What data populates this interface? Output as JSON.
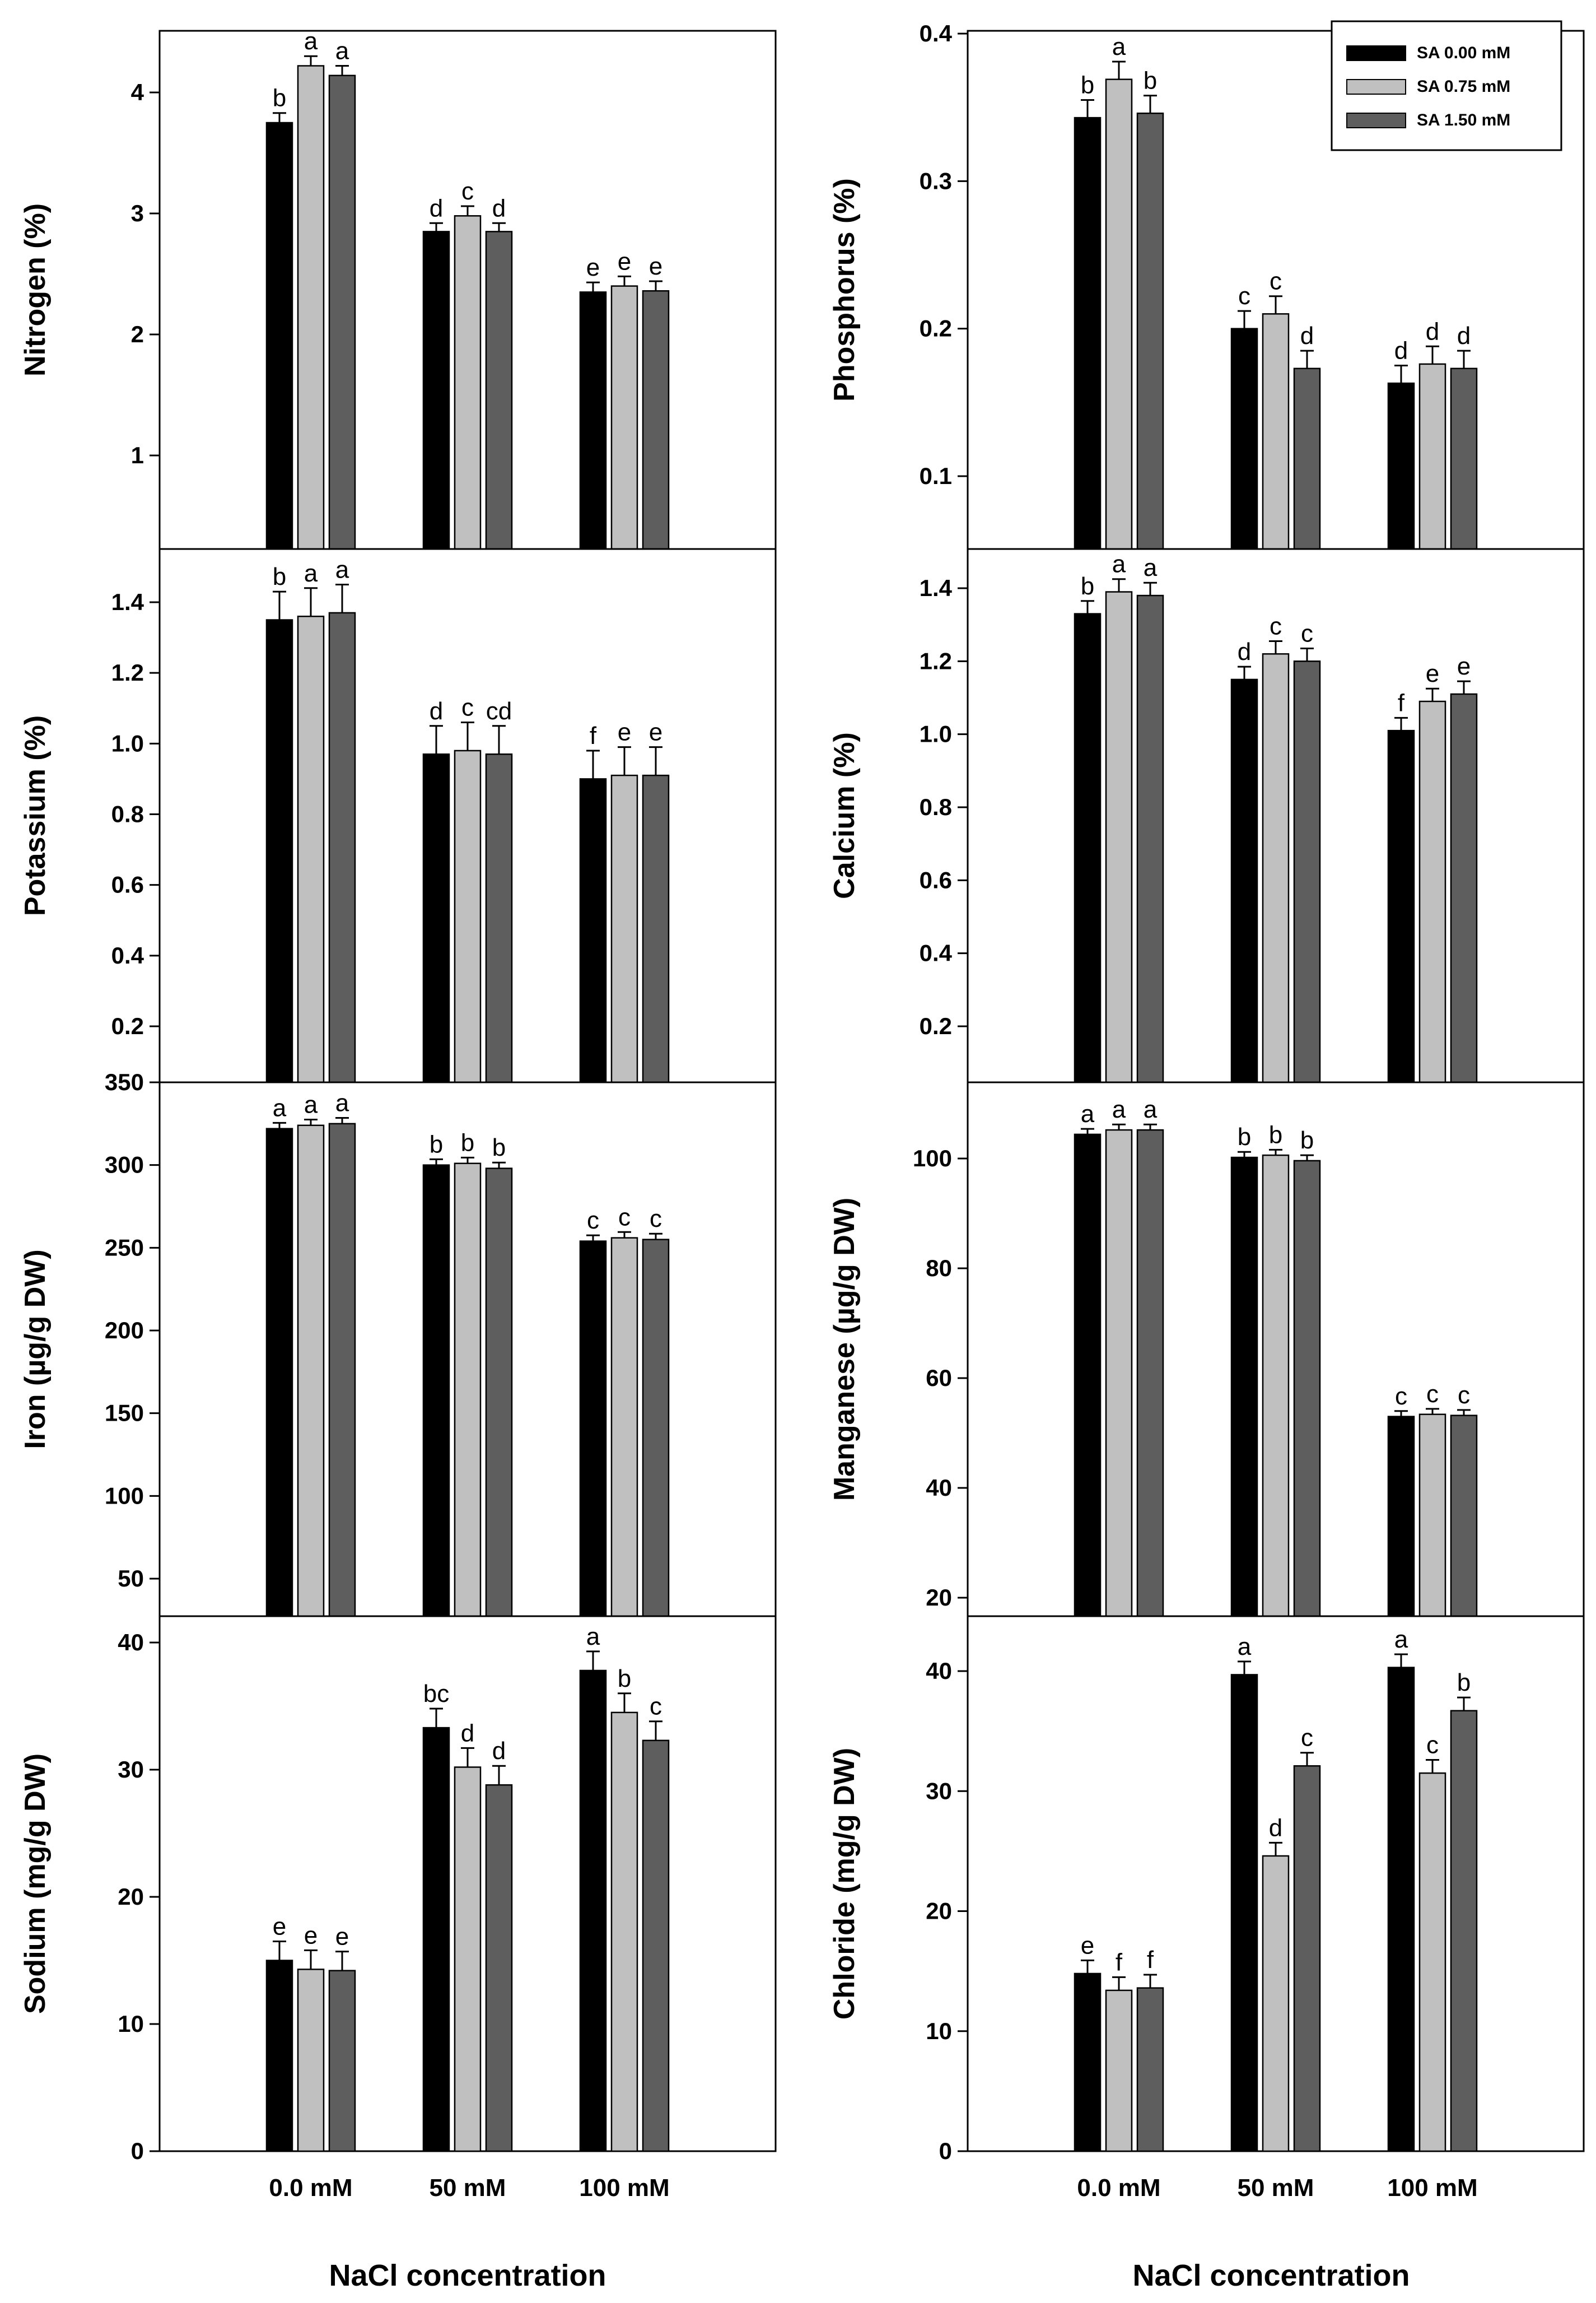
{
  "legend": {
    "entries": [
      {
        "label": "SA 0.00 mM",
        "color": "#000000"
      },
      {
        "label": "SA 0.75 mM",
        "color": "#c0c0c0"
      },
      {
        "label": "SA 1.50 mM",
        "color": "#5e5e5e"
      }
    ],
    "placement": "top-right of phosphorus panel"
  },
  "x_axis_title": "NaCl concentration",
  "categories": [
    "0.0 mM",
    "50 mM",
    "100 mM"
  ],
  "chart_data": [
    {
      "type": "bar",
      "ylabel": "Nitrogen (%)",
      "ylim": [
        0.3,
        4.6
      ],
      "yticks": [
        1,
        2,
        3,
        4
      ],
      "tick_labels": [
        "1",
        "2",
        "3",
        "4"
      ],
      "series": [
        {
          "name": "SA 0.00 mM",
          "values": [
            3.75,
            2.85,
            2.35
          ],
          "errors": [
            0.08,
            0.07,
            0.08
          ],
          "letters": [
            "b",
            "d",
            "e"
          ]
        },
        {
          "name": "SA 0.75 mM",
          "values": [
            4.22,
            2.98,
            2.4
          ],
          "errors": [
            0.08,
            0.08,
            0.08
          ],
          "letters": [
            "a",
            "c",
            "e"
          ]
        },
        {
          "name": "SA 1.50 mM",
          "values": [
            4.14,
            2.85,
            2.36
          ],
          "errors": [
            0.08,
            0.07,
            0.08
          ],
          "letters": [
            "a",
            "d",
            "e"
          ]
        }
      ]
    },
    {
      "type": "bar",
      "ylabel": "Phosphorus (%)",
      "ylim": [
        0.051,
        0.402
      ],
      "yticks": [
        0.1,
        0.2,
        0.3,
        0.4
      ],
      "tick_labels": [
        "0.1",
        "0.2",
        "0.3",
        "0.4"
      ],
      "series": [
        {
          "name": "SA 0.00 mM",
          "values": [
            0.343,
            0.2,
            0.163
          ],
          "errors": [
            0.012,
            0.012,
            0.012
          ],
          "letters": [
            "b",
            "c",
            "d"
          ]
        },
        {
          "name": "SA 0.75 mM",
          "values": [
            0.369,
            0.21,
            0.176
          ],
          "errors": [
            0.012,
            0.012,
            0.012
          ],
          "letters": [
            "a",
            "c",
            "d"
          ]
        },
        {
          "name": "SA 1.50 mM",
          "values": [
            0.346,
            0.173,
            0.173
          ],
          "errors": [
            0.012,
            0.012,
            0.012
          ],
          "letters": [
            "b",
            "d",
            "d"
          ]
        }
      ]
    },
    {
      "type": "bar",
      "ylabel": "Potassium (%)",
      "ylim": [
        0.0,
        1.52
      ],
      "yticks": [
        0.2,
        0.4,
        0.6,
        0.8,
        1.0,
        1.2,
        1.4
      ],
      "tick_labels": [
        "0.2",
        "0.4",
        "0.6",
        "0.8",
        "1.0",
        "1.2",
        "1.4"
      ],
      "series": [
        {
          "name": "SA 0.00 mM",
          "values": [
            1.35,
            0.97,
            0.9
          ],
          "errors": [
            0.08,
            0.08,
            0.08
          ],
          "letters": [
            "b",
            "d",
            "f"
          ]
        },
        {
          "name": "SA 0.75 mM",
          "values": [
            1.36,
            0.98,
            0.91
          ],
          "errors": [
            0.08,
            0.08,
            0.08
          ],
          "letters": [
            "a",
            "c",
            "e"
          ]
        },
        {
          "name": "SA 1.50 mM",
          "values": [
            1.37,
            0.97,
            0.91
          ],
          "errors": [
            0.08,
            0.08,
            0.08
          ],
          "letters": [
            "a",
            "cd",
            "e"
          ]
        }
      ]
    },
    {
      "type": "bar",
      "ylabel": "Calcium (%)",
      "ylim": [
        0.0,
        1.52
      ],
      "yticks": [
        0.2,
        0.4,
        0.6,
        0.8,
        1.0,
        1.2,
        1.4
      ],
      "tick_labels": [
        "0.2",
        "0.4",
        "0.6",
        "0.8",
        "1.0",
        "1.2",
        "1.4"
      ],
      "series": [
        {
          "name": "SA 0.00 mM",
          "values": [
            1.33,
            1.15,
            1.01
          ],
          "errors": [
            0.035,
            0.035,
            0.035
          ],
          "letters": [
            "b",
            "d",
            "f"
          ]
        },
        {
          "name": "SA 0.75 mM",
          "values": [
            1.39,
            1.22,
            1.09
          ],
          "errors": [
            0.035,
            0.035,
            0.035
          ],
          "letters": [
            "a",
            "c",
            "e"
          ]
        },
        {
          "name": "SA 1.50 mM",
          "values": [
            1.38,
            1.2,
            1.11
          ],
          "errors": [
            0.035,
            0.035,
            0.035
          ],
          "letters": [
            "a",
            "c",
            "e"
          ]
        }
      ]
    },
    {
      "type": "bar",
      "ylabel": "Iron (µg/g DW)",
      "ylim": [
        27,
        350
      ],
      "yticks": [
        50,
        100,
        150,
        200,
        250,
        300,
        350
      ],
      "tick_labels": [
        "50",
        "100",
        "150",
        "200",
        "250",
        "300",
        "350"
      ],
      "series": [
        {
          "name": "SA 0.00 mM",
          "values": [
            322,
            300,
            254
          ],
          "errors": [
            3.5,
            3.5,
            3.5
          ],
          "letters": [
            "a",
            "b",
            "c"
          ]
        },
        {
          "name": "SA 0.75 mM",
          "values": [
            324,
            301,
            256
          ],
          "errors": [
            3.5,
            3.5,
            3.5
          ],
          "letters": [
            "a",
            "b",
            "c"
          ]
        },
        {
          "name": "SA 1.50 mM",
          "values": [
            325,
            298,
            255
          ],
          "errors": [
            3.5,
            3.5,
            3.5
          ],
          "letters": [
            "a",
            "b",
            "c"
          ]
        }
      ]
    },
    {
      "type": "bar",
      "ylabel": "Manganese (µg/g DW)",
      "ylim": [
        15,
        110
      ],
      "yticks": [
        20,
        40,
        60,
        80,
        100
      ],
      "tick_labels": [
        "20",
        "40",
        "60",
        "80",
        "100"
      ],
      "series": [
        {
          "name": "SA 0.00 mM",
          "values": [
            104.4,
            100.2,
            53.0
          ],
          "errors": [
            1.0,
            1.0,
            1.0
          ],
          "letters": [
            "a",
            "b",
            "c"
          ]
        },
        {
          "name": "SA 0.75 mM",
          "values": [
            105.2,
            100.6,
            53.4
          ],
          "errors": [
            1.0,
            1.0,
            1.0
          ],
          "letters": [
            "a",
            "b",
            "c"
          ]
        },
        {
          "name": "SA 1.50 mM",
          "values": [
            105.2,
            99.6,
            53.2
          ],
          "errors": [
            1.0,
            1.0,
            1.0
          ],
          "letters": [
            "a",
            "b",
            "c"
          ]
        }
      ]
    },
    {
      "type": "bar",
      "ylabel": "Sodium (mg/g DW)",
      "ylim": [
        0,
        42
      ],
      "yticks": [
        0,
        10,
        20,
        30,
        40
      ],
      "tick_labels": [
        "0",
        "10",
        "20",
        "30",
        "40"
      ],
      "series": [
        {
          "name": "SA 0.00 mM",
          "values": [
            15.0,
            33.3,
            37.8
          ],
          "errors": [
            1.5,
            1.5,
            1.5
          ],
          "letters": [
            "e",
            "bc",
            "a"
          ]
        },
        {
          "name": "SA 0.75 mM",
          "values": [
            14.3,
            30.2,
            34.5
          ],
          "errors": [
            1.5,
            1.5,
            1.5
          ],
          "letters": [
            "e",
            "d",
            "b"
          ]
        },
        {
          "name": "SA 1.50 mM",
          "values": [
            14.2,
            28.8,
            32.3
          ],
          "errors": [
            1.5,
            1.5,
            1.5
          ],
          "letters": [
            "e",
            "d",
            "c"
          ]
        }
      ]
    },
    {
      "type": "bar",
      "ylabel": "Chloride (mg/g DW)",
      "ylim": [
        0,
        44
      ],
      "yticks": [
        0,
        10,
        20,
        30,
        40
      ],
      "tick_labels": [
        "0",
        "10",
        "20",
        "30",
        "40"
      ],
      "series": [
        {
          "name": "SA 0.00 mM",
          "values": [
            14.8,
            39.7,
            40.3
          ],
          "errors": [
            1.1,
            1.1,
            1.1
          ],
          "letters": [
            "e",
            "a",
            "a"
          ]
        },
        {
          "name": "SA 0.75 mM",
          "values": [
            13.4,
            24.6,
            31.5
          ],
          "errors": [
            1.1,
            1.1,
            1.1
          ],
          "letters": [
            "f",
            "d",
            "c"
          ]
        },
        {
          "name": "SA 1.50 mM",
          "values": [
            13.6,
            32.1,
            36.7
          ],
          "errors": [
            1.1,
            1.1,
            1.1
          ],
          "letters": [
            "f",
            "c",
            "b"
          ]
        }
      ]
    }
  ]
}
